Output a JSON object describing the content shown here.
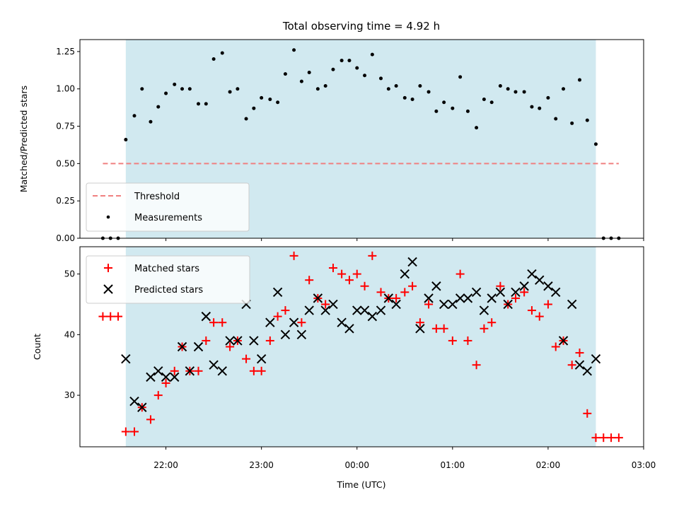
{
  "chart_data": {
    "type": "scatter",
    "title": "Total observing time = 4.92 h",
    "xlabel": "Time (UTC)",
    "x_axis": {
      "unit": "hours since 00:00 UTC",
      "range": [
        -2.9,
        3.0
      ],
      "ticks": [
        -2,
        -1,
        0,
        1,
        2,
        3
      ],
      "tick_labels": [
        "22:00",
        "23:00",
        "00:00",
        "01:00",
        "02:00",
        "03:00"
      ]
    },
    "observing_window": {
      "start": -2.42,
      "end": 2.5,
      "color": "#d1e9f0"
    },
    "top_panel": {
      "ylabel": "Matched/Predicted stars",
      "ylim": [
        0,
        1.33
      ],
      "yticks": [
        0,
        0.25,
        0.5,
        0.75,
        1.0,
        1.25
      ],
      "ytick_labels": [
        "0.00",
        "0.25",
        "0.50",
        "0.75",
        "1.00",
        "1.25"
      ],
      "threshold": {
        "name": "Threshold",
        "value": 0.5,
        "x_range": [
          -2.66,
          2.74
        ],
        "color": "#f08080"
      },
      "measurements": {
        "name": "Measurements",
        "color": "#000000",
        "points": [
          [
            -2.66,
            0
          ],
          [
            -2.58,
            0
          ],
          [
            -2.5,
            0
          ],
          [
            -2.42,
            0.66
          ],
          [
            -2.33,
            0.82
          ],
          [
            -2.25,
            1.0
          ],
          [
            -2.16,
            0.78
          ],
          [
            -2.08,
            0.88
          ],
          [
            -2.0,
            0.97
          ],
          [
            -1.91,
            1.03
          ],
          [
            -1.83,
            1.0
          ],
          [
            -1.75,
            1.0
          ],
          [
            -1.66,
            0.9
          ],
          [
            -1.58,
            0.9
          ],
          [
            -1.5,
            1.2
          ],
          [
            -1.41,
            1.24
          ],
          [
            -1.33,
            0.98
          ],
          [
            -1.25,
            1.0
          ],
          [
            -1.16,
            0.8
          ],
          [
            -1.08,
            0.87
          ],
          [
            -1.0,
            0.94
          ],
          [
            -0.91,
            0.93
          ],
          [
            -0.83,
            0.91
          ],
          [
            -0.75,
            1.1
          ],
          [
            -0.66,
            1.26
          ],
          [
            -0.58,
            1.05
          ],
          [
            -0.5,
            1.11
          ],
          [
            -0.41,
            1.0
          ],
          [
            -0.33,
            1.02
          ],
          [
            -0.25,
            1.13
          ],
          [
            -0.16,
            1.19
          ],
          [
            -0.08,
            1.19
          ],
          [
            0.0,
            1.14
          ],
          [
            0.08,
            1.09
          ],
          [
            0.16,
            1.23
          ],
          [
            0.25,
            1.07
          ],
          [
            0.33,
            1.0
          ],
          [
            0.41,
            1.02
          ],
          [
            0.5,
            0.94
          ],
          [
            0.58,
            0.93
          ],
          [
            0.66,
            1.02
          ],
          [
            0.75,
            0.98
          ],
          [
            0.83,
            0.85
          ],
          [
            0.91,
            0.91
          ],
          [
            1.0,
            0.87
          ],
          [
            1.08,
            1.08
          ],
          [
            1.16,
            0.85
          ],
          [
            1.25,
            0.74
          ],
          [
            1.33,
            0.93
          ],
          [
            1.41,
            0.91
          ],
          [
            1.5,
            1.02
          ],
          [
            1.58,
            1.0
          ],
          [
            1.66,
            0.98
          ],
          [
            1.75,
            0.98
          ],
          [
            1.83,
            0.88
          ],
          [
            1.91,
            0.87
          ],
          [
            2.0,
            0.94
          ],
          [
            2.08,
            0.8
          ],
          [
            2.16,
            1.0
          ],
          [
            2.25,
            0.77
          ],
          [
            2.33,
            1.06
          ],
          [
            2.41,
            0.79
          ],
          [
            2.5,
            0.63
          ],
          [
            2.58,
            0
          ],
          [
            2.66,
            0
          ],
          [
            2.74,
            0
          ]
        ]
      }
    },
    "bottom_panel": {
      "ylabel": "Count",
      "ylim": [
        21.5,
        54.5
      ],
      "yticks": [
        30,
        40,
        50
      ],
      "ytick_labels": [
        "30",
        "40",
        "50"
      ],
      "series": [
        {
          "name": "Matched stars",
          "marker": "+",
          "color": "#ff0000",
          "points": [
            [
              -2.66,
              43
            ],
            [
              -2.58,
              43
            ],
            [
              -2.5,
              43
            ],
            [
              -2.42,
              24
            ],
            [
              -2.33,
              24
            ],
            [
              -2.25,
              28
            ],
            [
              -2.16,
              26
            ],
            [
              -2.08,
              30
            ],
            [
              -2.0,
              32
            ],
            [
              -1.91,
              34
            ],
            [
              -1.83,
              38
            ],
            [
              -1.75,
              34
            ],
            [
              -1.66,
              34
            ],
            [
              -1.58,
              39
            ],
            [
              -1.5,
              42
            ],
            [
              -1.41,
              42
            ],
            [
              -1.33,
              38
            ],
            [
              -1.25,
              39
            ],
            [
              -1.16,
              36
            ],
            [
              -1.08,
              34
            ],
            [
              -1.0,
              34
            ],
            [
              -0.91,
              39
            ],
            [
              -0.83,
              43
            ],
            [
              -0.75,
              44
            ],
            [
              -0.66,
              53
            ],
            [
              -0.58,
              42
            ],
            [
              -0.5,
              49
            ],
            [
              -0.41,
              46
            ],
            [
              -0.33,
              45
            ],
            [
              -0.25,
              51
            ],
            [
              -0.16,
              50
            ],
            [
              -0.08,
              49
            ],
            [
              0.0,
              50
            ],
            [
              0.08,
              48
            ],
            [
              0.16,
              53
            ],
            [
              0.25,
              47
            ],
            [
              0.33,
              46
            ],
            [
              0.41,
              46
            ],
            [
              0.5,
              47
            ],
            [
              0.58,
              48
            ],
            [
              0.66,
              42
            ],
            [
              0.75,
              45
            ],
            [
              0.83,
              41
            ],
            [
              0.91,
              41
            ],
            [
              1.0,
              39
            ],
            [
              1.08,
              50
            ],
            [
              1.16,
              39
            ],
            [
              1.25,
              35
            ],
            [
              1.33,
              41
            ],
            [
              1.41,
              42
            ],
            [
              1.5,
              48
            ],
            [
              1.58,
              45
            ],
            [
              1.66,
              46
            ],
            [
              1.75,
              47
            ],
            [
              1.83,
              44
            ],
            [
              1.91,
              43
            ],
            [
              2.0,
              45
            ],
            [
              2.08,
              38
            ],
            [
              2.16,
              39
            ],
            [
              2.25,
              35
            ],
            [
              2.33,
              37
            ],
            [
              2.41,
              27
            ],
            [
              2.5,
              23
            ],
            [
              2.58,
              23
            ],
            [
              2.66,
              23
            ],
            [
              2.74,
              23
            ]
          ]
        },
        {
          "name": "Predicted stars",
          "marker": "x",
          "color": "#000000",
          "points": [
            [
              -2.42,
              36
            ],
            [
              -2.33,
              29
            ],
            [
              -2.25,
              28
            ],
            [
              -2.16,
              33
            ],
            [
              -2.08,
              34
            ],
            [
              -2.0,
              33
            ],
            [
              -1.91,
              33
            ],
            [
              -1.83,
              38
            ],
            [
              -1.75,
              34
            ],
            [
              -1.66,
              38
            ],
            [
              -1.58,
              43
            ],
            [
              -1.5,
              35
            ],
            [
              -1.41,
              34
            ],
            [
              -1.33,
              39
            ],
            [
              -1.25,
              39
            ],
            [
              -1.16,
              45
            ],
            [
              -1.08,
              39
            ],
            [
              -1.0,
              36
            ],
            [
              -0.91,
              42
            ],
            [
              -0.83,
              47
            ],
            [
              -0.75,
              40
            ],
            [
              -0.66,
              42
            ],
            [
              -0.58,
              40
            ],
            [
              -0.5,
              44
            ],
            [
              -0.41,
              46
            ],
            [
              -0.33,
              44
            ],
            [
              -0.25,
              45
            ],
            [
              -0.16,
              42
            ],
            [
              -0.08,
              41
            ],
            [
              0.0,
              44
            ],
            [
              0.08,
              44
            ],
            [
              0.16,
              43
            ],
            [
              0.25,
              44
            ],
            [
              0.33,
              46
            ],
            [
              0.41,
              45
            ],
            [
              0.5,
              50
            ],
            [
              0.58,
              52
            ],
            [
              0.66,
              41
            ],
            [
              0.75,
              46
            ],
            [
              0.83,
              48
            ],
            [
              0.91,
              45
            ],
            [
              1.0,
              45
            ],
            [
              1.08,
              46
            ],
            [
              1.16,
              46
            ],
            [
              1.25,
              47
            ],
            [
              1.33,
              44
            ],
            [
              1.41,
              46
            ],
            [
              1.5,
              47
            ],
            [
              1.58,
              45
            ],
            [
              1.66,
              47
            ],
            [
              1.75,
              48
            ],
            [
              1.83,
              50
            ],
            [
              1.91,
              49
            ],
            [
              2.0,
              48
            ],
            [
              2.08,
              47
            ],
            [
              2.16,
              39
            ],
            [
              2.25,
              45
            ],
            [
              2.33,
              35
            ],
            [
              2.41,
              34
            ],
            [
              2.5,
              36
            ]
          ]
        }
      ]
    },
    "legends": {
      "top": {
        "placement": "lower-left",
        "entries": [
          "Threshold",
          "Measurements"
        ]
      },
      "bottom": {
        "placement": "upper-left",
        "entries": [
          "Matched stars",
          "Predicted stars"
        ]
      }
    }
  }
}
